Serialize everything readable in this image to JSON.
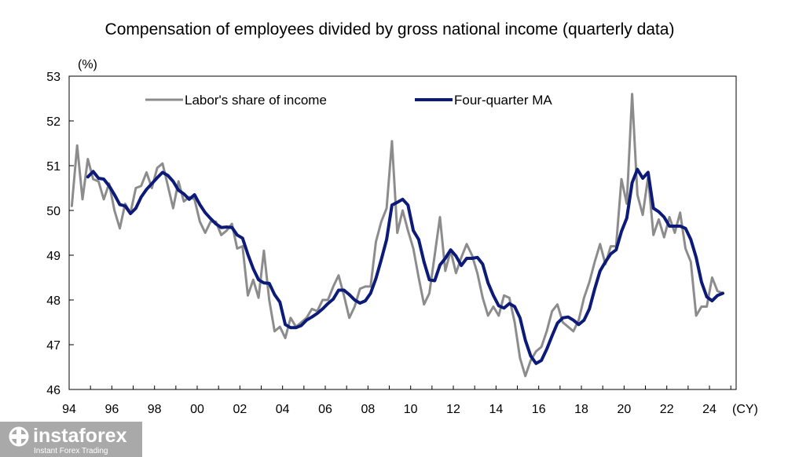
{
  "chart_data": {
    "type": "line",
    "title": "Compensation of employees divided by gross national income (quarterly data)",
    "ylabel": "(%)",
    "xlabel": "(CY)",
    "ylim": [
      46,
      53
    ],
    "yticks": [
      53,
      52,
      51,
      50,
      49,
      48,
      47,
      46
    ],
    "xlim": [
      1994.0,
      2025.25
    ],
    "xticks": [
      {
        "value": 1994,
        "label": "94"
      },
      {
        "value": 1996,
        "label": "96"
      },
      {
        "value": 1998,
        "label": "98"
      },
      {
        "value": 2000,
        "label": "00"
      },
      {
        "value": 2002,
        "label": "02"
      },
      {
        "value": 2004,
        "label": "04"
      },
      {
        "value": 2006,
        "label": "06"
      },
      {
        "value": 2008,
        "label": "08"
      },
      {
        "value": 2010,
        "label": "10"
      },
      {
        "value": 2012,
        "label": "12"
      },
      {
        "value": 2014,
        "label": "14"
      },
      {
        "value": 2016,
        "label": "16"
      },
      {
        "value": 2018,
        "label": "18"
      },
      {
        "value": 2020,
        "label": "20"
      },
      {
        "value": 2022,
        "label": "22"
      },
      {
        "value": 2024,
        "label": "24"
      }
    ],
    "grid": false,
    "legend_position": "top",
    "x_start": 1994.125,
    "x_step": 0.25,
    "series": [
      {
        "name": "Labor's share of income",
        "color": "#8c8c8c",
        "values": [
          50.1,
          51.45,
          50.25,
          51.15,
          50.7,
          50.65,
          50.25,
          50.6,
          50.0,
          49.6,
          50.15,
          49.95,
          50.5,
          50.55,
          50.85,
          50.5,
          50.95,
          51.05,
          50.55,
          50.05,
          50.65,
          50.2,
          50.3,
          50.25,
          49.75,
          49.5,
          49.75,
          49.75,
          49.45,
          49.55,
          49.7,
          49.15,
          49.2,
          48.1,
          48.45,
          48.05,
          49.1,
          48.0,
          47.3,
          47.4,
          47.15,
          47.6,
          47.4,
          47.5,
          47.6,
          47.8,
          47.75,
          48.0,
          48.0,
          48.3,
          48.55,
          48.1,
          47.6,
          47.85,
          48.25,
          48.3,
          48.3,
          49.3,
          49.75,
          50.05,
          51.55,
          49.5,
          50.0,
          49.55,
          49.15,
          48.5,
          47.9,
          48.15,
          49.0,
          49.85,
          48.65,
          49.1,
          48.6,
          48.95,
          49.25,
          49.0,
          48.6,
          48.05,
          47.65,
          47.85,
          47.65,
          48.1,
          48.05,
          47.5,
          46.7,
          46.3,
          46.65,
          46.85,
          46.95,
          47.3,
          47.75,
          47.9,
          47.5,
          47.4,
          47.3,
          47.55,
          48.05,
          48.4,
          48.85,
          49.25,
          48.8,
          49.2,
          49.2,
          50.7,
          50.15,
          52.6,
          50.35,
          49.9,
          50.75,
          49.45,
          49.8,
          49.4,
          49.85,
          49.5,
          49.95,
          49.15,
          48.85,
          47.65,
          47.85,
          47.85,
          48.5,
          48.2,
          48.15
        ]
      },
      {
        "name": "Four-quarter MA",
        "color": "#0c1a7a",
        "values": [
          null,
          null,
          null,
          50.75,
          50.87,
          50.72,
          50.7,
          50.55,
          50.35,
          50.13,
          50.1,
          49.93,
          50.05,
          50.3,
          50.47,
          50.6,
          50.73,
          50.85,
          50.78,
          50.65,
          50.45,
          50.37,
          50.25,
          50.35,
          50.13,
          49.95,
          49.82,
          49.7,
          49.62,
          49.63,
          49.62,
          49.45,
          49.38,
          49.02,
          48.7,
          48.45,
          48.38,
          48.37,
          48.12,
          47.95,
          47.45,
          47.38,
          47.38,
          47.43,
          47.55,
          47.62,
          47.7,
          47.8,
          47.92,
          48.02,
          48.22,
          48.22,
          48.12,
          48.0,
          47.93,
          47.98,
          48.15,
          48.48,
          48.9,
          49.35,
          50.12,
          50.18,
          50.25,
          50.12,
          49.55,
          49.35,
          48.85,
          48.45,
          48.43,
          48.78,
          48.93,
          49.12,
          48.98,
          48.77,
          48.93,
          48.93,
          48.95,
          48.8,
          48.38,
          48.1,
          47.87,
          47.82,
          47.92,
          47.85,
          47.6,
          47.1,
          46.75,
          46.58,
          46.65,
          46.9,
          47.2,
          47.48,
          47.6,
          47.62,
          47.55,
          47.45,
          47.55,
          47.8,
          48.25,
          48.65,
          48.85,
          49.03,
          49.12,
          49.53,
          49.83,
          50.62,
          50.92,
          50.72,
          50.85,
          50.05,
          49.97,
          49.85,
          49.65,
          49.65,
          49.65,
          49.6,
          49.35,
          48.95,
          48.4,
          48.07,
          47.98,
          48.1,
          48.15
        ]
      }
    ]
  },
  "watermark": {
    "brand": "instaforex",
    "tagline": "Instant Forex Trading"
  }
}
